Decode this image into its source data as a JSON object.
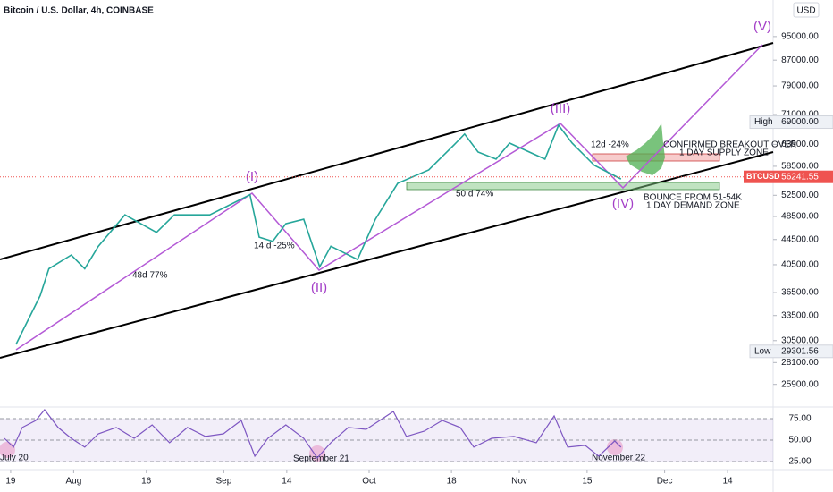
{
  "chart_data": {
    "type": "line",
    "title": "Bitcoin / U.S. Dollar, 4h, COINBASE",
    "currency": "USD",
    "log_scale": true,
    "xlim": [
      -2.2,
      157.4
    ],
    "xticks": [
      {
        "value": 0,
        "label": "19"
      },
      {
        "value": 13,
        "label": "Aug"
      },
      {
        "value": 28,
        "label": "16"
      },
      {
        "value": 44,
        "label": "Sep"
      },
      {
        "value": 57,
        "label": "14"
      },
      {
        "value": 74,
        "label": "Oct"
      },
      {
        "value": 91,
        "label": "18"
      },
      {
        "value": 105,
        "label": "Nov"
      },
      {
        "value": 119,
        "label": "15"
      },
      {
        "value": 135,
        "label": "Dec"
      },
      {
        "value": 148,
        "label": "14"
      }
    ],
    "ylim": [
      23800,
      107100
    ],
    "yticks": [
      {
        "value": 95000,
        "label": "95000.00"
      },
      {
        "value": 87000,
        "label": "87000.00"
      },
      {
        "value": 79000,
        "label": "79000.00"
      },
      {
        "value": 71000,
        "label": "71000.00"
      },
      {
        "value": 63500,
        "label": "63500.00"
      },
      {
        "value": 58500,
        "label": "58500.00"
      },
      {
        "value": 52500,
        "label": "52500.00"
      },
      {
        "value": 48500,
        "label": "48500.00"
      },
      {
        "value": 44500,
        "label": "44500.00"
      },
      {
        "value": 40500,
        "label": "40500.00"
      },
      {
        "value": 36500,
        "label": "36500.00"
      },
      {
        "value": 33500,
        "label": "33500.00"
      },
      {
        "value": 30500,
        "label": "30500.00"
      },
      {
        "value": 28100,
        "label": "28100.00"
      },
      {
        "value": 25900,
        "label": "25900.00"
      }
    ],
    "grid": false,
    "series": [
      {
        "name": "BTCUSD",
        "color": "#26a69a",
        "x": [
          1.1,
          6.1,
          7.9,
          12.5,
          15.3,
          18.1,
          23.6,
          30.1,
          33.8,
          41.1,
          49.4,
          51.3,
          54.1,
          56.8,
          60.5,
          63.8,
          66.1,
          71.6,
          75.3,
          79.9,
          86.3,
          91.9,
          93.7,
          96.5,
          100.2,
          103,
          110.3,
          113.1,
          115.9,
          120.5,
          126
        ],
        "values": [
          30070,
          36100,
          39900,
          42000,
          39900,
          43400,
          48800,
          45700,
          48800,
          48800,
          52600,
          44900,
          44200,
          47200,
          48000,
          40200,
          43400,
          41300,
          48000,
          54900,
          57700,
          63800,
          66000,
          61700,
          60100,
          63800,
          60100,
          68200,
          63800,
          58700,
          55800
        ]
      }
    ],
    "last_price": {
      "value": 56241.55,
      "label": "56241.55"
    },
    "high": {
      "name": "High",
      "value": 69000,
      "label": "69000.00"
    },
    "low": {
      "name": "Low",
      "value": 29301.56,
      "label": "29301.56"
    },
    "waves": [
      "(I)",
      "(II)",
      "(III)",
      "(IV)",
      "(V)"
    ],
    "annotations": [
      "48d 77%",
      "14 d -25%",
      "50 d 74%",
      "12d -24%",
      "CONFIRMED BREAKOUT OVER",
      "1 DAY SUPPLY ZONE",
      "BOUNCE FROM 51-54K",
      "1 DAY DEMAND ZONE"
    ],
    "rsi": {
      "color": "#7e57c2",
      "ylim": [
        15.6,
        88.5
      ],
      "yticks": [
        {
          "value": 75,
          "label": "75.00"
        },
        {
          "value": 50,
          "label": "50.00"
        },
        {
          "value": 25,
          "label": "25.00"
        }
      ],
      "x": [
        -1.3,
        0.6,
        2.4,
        5.2,
        7,
        9.8,
        12.5,
        15.3,
        18.1,
        21.8,
        25.5,
        29.2,
        32.8,
        36.5,
        40.2,
        43.9,
        47.6,
        50.4,
        53.1,
        56.8,
        60.5,
        63.3,
        66.1,
        69.7,
        73.4,
        76.2,
        79,
        81.7,
        85.4,
        89.1,
        92.8,
        95.6,
        99.3,
        103.9,
        108.5,
        112.2,
        115,
        118.6,
        121.4,
        124.7,
        126
      ],
      "values": [
        52.1,
        41.7,
        64.6,
        72.9,
        85.4,
        64.6,
        52.1,
        41.7,
        57.3,
        64.6,
        52.1,
        67.7,
        46.9,
        64.6,
        54.2,
        57.3,
        72.9,
        31.2,
        52.1,
        67.7,
        52.1,
        29.2,
        46.9,
        64.6,
        62.5,
        72.9,
        83.3,
        54.2,
        60.4,
        72.9,
        64.6,
        41.7,
        52.1,
        54.2,
        46.9,
        78.1,
        41.7,
        43.8,
        31.2,
        49,
        41.7
      ],
      "divergences": [
        "July 20",
        "September 21",
        "November 22"
      ]
    }
  }
}
